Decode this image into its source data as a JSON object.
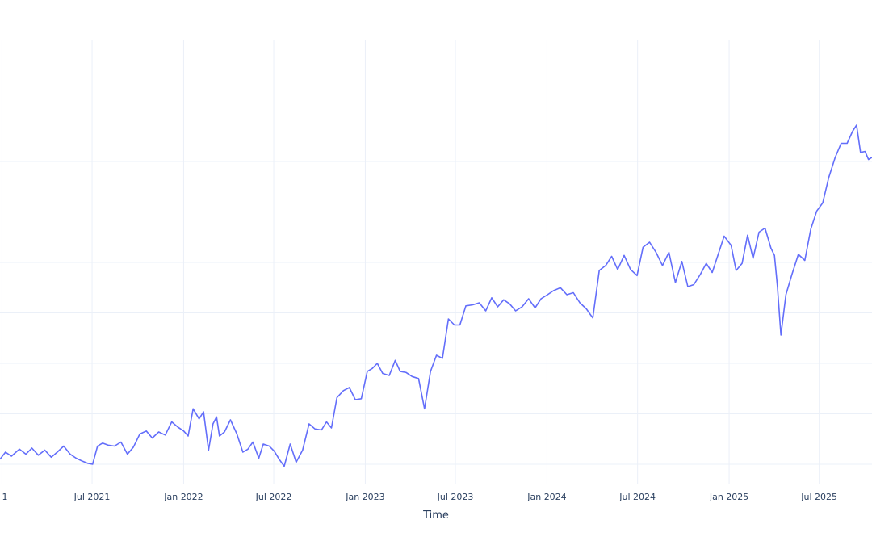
{
  "chart_data": {
    "type": "line",
    "title": "",
    "xlabel": "Time",
    "ylabel": "",
    "grid": true,
    "legend": "none",
    "line_color": "#636efa",
    "grid_color": "#ebf0f8",
    "xlim": [
      "2020-12-28",
      "2025-10-15"
    ],
    "ylim": [
      0.8,
      5.2
    ],
    "y_gridlines": [
      1,
      1.5,
      2,
      2.5,
      3,
      3.5,
      4,
      4.5
    ],
    "x_ticks": [
      {
        "date": "2021-01-01",
        "label": "1"
      },
      {
        "date": "2021-07-01",
        "label": "Jul 2021"
      },
      {
        "date": "2022-01-01",
        "label": "Jan 2022"
      },
      {
        "date": "2022-07-01",
        "label": "Jul 2022"
      },
      {
        "date": "2023-01-01",
        "label": "Jan 2023"
      },
      {
        "date": "2023-07-01",
        "label": "Jul 2023"
      },
      {
        "date": "2024-01-01",
        "label": "Jan 2024"
      },
      {
        "date": "2024-07-01",
        "label": "Jul 2024"
      },
      {
        "date": "2025-01-01",
        "label": "Jan 2025"
      },
      {
        "date": "2025-07-01",
        "label": "Jul 2025"
      }
    ],
    "series": [
      {
        "x": [
          "2020-12-28",
          "2021-01-08",
          "2021-01-20",
          "2021-02-05",
          "2021-02-18",
          "2021-03-02",
          "2021-03-15",
          "2021-03-28",
          "2021-04-10",
          "2021-04-22",
          "2021-05-05",
          "2021-05-18",
          "2021-05-30",
          "2021-06-12",
          "2021-06-22",
          "2021-07-02",
          "2021-07-12",
          "2021-07-22",
          "2021-08-02",
          "2021-08-15",
          "2021-08-28",
          "2021-09-10",
          "2021-09-22",
          "2021-10-05",
          "2021-10-18",
          "2021-10-30",
          "2021-11-12",
          "2021-11-25",
          "2021-12-08",
          "2021-12-20",
          "2022-01-01",
          "2022-01-10",
          "2022-01-20",
          "2022-02-01",
          "2022-02-10",
          "2022-02-20",
          "2022-03-01",
          "2022-03-08",
          "2022-03-14",
          "2022-03-24",
          "2022-04-05",
          "2022-04-18",
          "2022-04-30",
          "2022-05-10",
          "2022-05-20",
          "2022-06-01",
          "2022-06-10",
          "2022-06-22",
          "2022-07-02",
          "2022-07-12",
          "2022-07-22",
          "2022-08-03",
          "2022-08-15",
          "2022-08-28",
          "2022-09-10",
          "2022-09-22",
          "2022-10-05",
          "2022-10-15",
          "2022-10-25",
          "2022-11-05",
          "2022-11-18",
          "2022-11-30",
          "2022-12-12",
          "2022-12-24",
          "2023-01-05",
          "2023-01-15",
          "2023-01-25",
          "2023-02-05",
          "2023-02-18",
          "2023-03-02",
          "2023-03-12",
          "2023-03-24",
          "2023-04-05",
          "2023-04-18",
          "2023-04-30",
          "2023-05-12",
          "2023-05-24",
          "2023-06-05",
          "2023-06-17",
          "2023-06-29",
          "2023-07-10",
          "2023-07-22",
          "2023-08-05",
          "2023-08-18",
          "2023-08-31",
          "2023-09-12",
          "2023-09-24",
          "2023-10-06",
          "2023-10-18",
          "2023-10-30",
          "2023-11-12",
          "2023-11-25",
          "2023-12-08",
          "2023-12-20",
          "2024-01-02",
          "2024-01-14",
          "2024-01-28",
          "2024-02-10",
          "2024-02-23",
          "2024-03-07",
          "2024-03-20",
          "2024-04-02",
          "2024-04-15",
          "2024-04-28",
          "2024-05-10",
          "2024-05-22",
          "2024-06-04",
          "2024-06-17",
          "2024-06-30",
          "2024-07-12",
          "2024-07-25",
          "2024-08-07",
          "2024-08-20",
          "2024-09-02",
          "2024-09-15",
          "2024-09-28",
          "2024-10-10",
          "2024-10-22",
          "2024-11-04",
          "2024-11-16",
          "2024-11-28",
          "2024-12-10",
          "2024-12-22",
          "2025-01-05",
          "2025-01-15",
          "2025-01-27",
          "2025-02-07",
          "2025-02-18",
          "2025-03-02",
          "2025-03-14",
          "2025-03-26",
          "2025-04-02",
          "2025-04-08",
          "2025-04-15",
          "2025-04-25",
          "2025-05-07",
          "2025-05-20",
          "2025-06-02",
          "2025-06-14",
          "2025-06-26",
          "2025-07-08",
          "2025-07-20",
          "2025-08-02",
          "2025-08-14",
          "2025-08-26",
          "2025-09-06",
          "2025-09-14",
          "2025-09-22",
          "2025-10-01",
          "2025-10-08",
          "2025-10-15"
        ],
        "y": [
          1.05,
          1.12,
          1.08,
          1.15,
          1.1,
          1.16,
          1.09,
          1.14,
          1.07,
          1.12,
          1.18,
          1.1,
          1.06,
          1.03,
          1.01,
          1.0,
          1.18,
          1.21,
          1.19,
          1.18,
          1.22,
          1.1,
          1.17,
          1.3,
          1.33,
          1.26,
          1.32,
          1.29,
          1.42,
          1.37,
          1.33,
          1.28,
          1.55,
          1.45,
          1.52,
          1.14,
          1.4,
          1.47,
          1.28,
          1.32,
          1.44,
          1.3,
          1.12,
          1.15,
          1.22,
          1.06,
          1.2,
          1.18,
          1.13,
          1.05,
          0.98,
          1.2,
          1.02,
          1.14,
          1.4,
          1.35,
          1.34,
          1.42,
          1.36,
          1.66,
          1.73,
          1.76,
          1.64,
          1.65,
          1.92,
          1.95,
          2.0,
          1.9,
          1.88,
          2.03,
          1.92,
          1.91,
          1.87,
          1.85,
          1.55,
          1.92,
          2.08,
          2.05,
          2.44,
          2.38,
          2.38,
          2.57,
          2.58,
          2.6,
          2.52,
          2.65,
          2.56,
          2.63,
          2.59,
          2.52,
          2.56,
          2.64,
          2.55,
          2.64,
          2.68,
          2.72,
          2.75,
          2.68,
          2.7,
          2.6,
          2.54,
          2.45,
          2.92,
          2.97,
          3.06,
          2.93,
          3.07,
          2.93,
          2.87,
          3.15,
          3.2,
          3.1,
          2.97,
          3.1,
          2.8,
          3.01,
          2.76,
          2.78,
          2.88,
          2.99,
          2.9,
          3.08,
          3.26,
          3.17,
          2.92,
          2.99,
          3.27,
          3.04,
          3.3,
          3.34,
          3.14,
          3.07,
          2.76,
          2.28,
          2.68,
          2.88,
          3.08,
          3.02,
          3.33,
          3.51,
          3.59,
          3.84,
          4.04,
          4.18,
          4.18,
          4.3,
          4.36,
          4.09,
          4.1,
          4.02,
          4.04
        ]
      }
    ]
  }
}
